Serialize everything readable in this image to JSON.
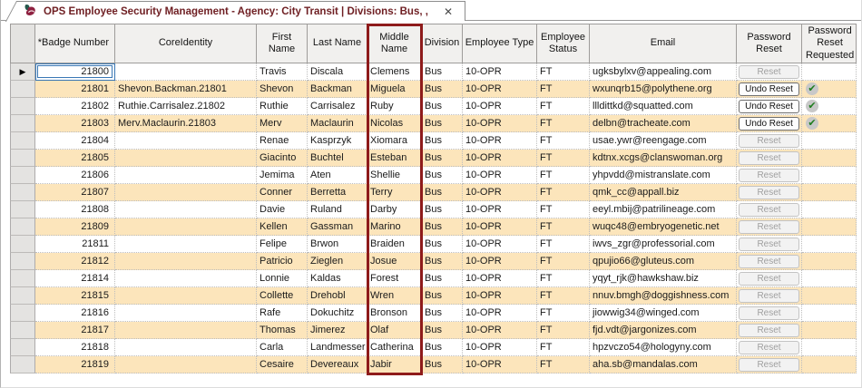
{
  "window": {
    "tab_title": "OPS Employee Security Management - Agency: City Transit | Divisions: Bus, ,",
    "close_label": "✕"
  },
  "colors": {
    "accent_red": "#8e1b1b",
    "row_alt_orange": "#fce5bb",
    "check_green": "#1e7d1e",
    "title_maroon": "#6e1e22",
    "focus_blue": "#3a78b5"
  },
  "grid": {
    "current_row_indicator": "▶",
    "columns": [
      {
        "key": "badge",
        "label": "*Badge Number"
      },
      {
        "key": "core",
        "label": "CoreIdentity"
      },
      {
        "key": "first",
        "label": "First Name"
      },
      {
        "key": "last",
        "label": "Last Name"
      },
      {
        "key": "middle",
        "label": "Middle Name"
      },
      {
        "key": "division",
        "label": "Division"
      },
      {
        "key": "type",
        "label": "Employee Type"
      },
      {
        "key": "status",
        "label": "Employee Status"
      },
      {
        "key": "email",
        "label": "Email"
      },
      {
        "key": "reset",
        "label": "Password Reset"
      },
      {
        "key": "requested",
        "label": "Password Reset Requested"
      }
    ],
    "rows": [
      {
        "badge": "21800",
        "core": "",
        "first": "Travis",
        "last": "Discala",
        "middle": "Clemens",
        "division": "Bus",
        "type": "10-OPR",
        "status": "FT",
        "email": "ugksbylxv@appealing.com",
        "reset_label": "Reset",
        "reset_enabled": false,
        "requested": false
      },
      {
        "badge": "21801",
        "core": "Shevon.Backman.21801",
        "first": "Shevon",
        "last": "Backman",
        "middle": "Miguela",
        "division": "Bus",
        "type": "10-OPR",
        "status": "FT",
        "email": "wxunqrb15@polythene.org",
        "reset_label": "Undo Reset",
        "reset_enabled": true,
        "requested": true
      },
      {
        "badge": "21802",
        "core": "Ruthie.Carrisalez.21802",
        "first": "Ruthie",
        "last": "Carrisalez",
        "middle": "Ruby",
        "division": "Bus",
        "type": "10-OPR",
        "status": "FT",
        "email": "llldittkd@squatted.com",
        "reset_label": "Undo Reset",
        "reset_enabled": true,
        "requested": true
      },
      {
        "badge": "21803",
        "core": "Merv.Maclaurin.21803",
        "first": "Merv",
        "last": "Maclaurin",
        "middle": "Nicolas",
        "division": "Bus",
        "type": "10-OPR",
        "status": "FT",
        "email": "delbn@tracheate.com",
        "reset_label": "Undo Reset",
        "reset_enabled": true,
        "requested": true
      },
      {
        "badge": "21804",
        "core": "",
        "first": "Renae",
        "last": "Kasprzyk",
        "middle": "Xiomara",
        "division": "Bus",
        "type": "10-OPR",
        "status": "FT",
        "email": "usae.ywr@reengage.com",
        "reset_label": "Reset",
        "reset_enabled": false,
        "requested": false
      },
      {
        "badge": "21805",
        "core": "",
        "first": "Giacinto",
        "last": "Buchtel",
        "middle": "Esteban",
        "division": "Bus",
        "type": "10-OPR",
        "status": "FT",
        "email": "kdtnx.xcgs@clanswoman.org",
        "reset_label": "Reset",
        "reset_enabled": false,
        "requested": false
      },
      {
        "badge": "21806",
        "core": "",
        "first": "Jemima",
        "last": "Aten",
        "middle": "Shellie",
        "division": "Bus",
        "type": "10-OPR",
        "status": "FT",
        "email": "yhpvdd@mistranslate.com",
        "reset_label": "Reset",
        "reset_enabled": false,
        "requested": false
      },
      {
        "badge": "21807",
        "core": "",
        "first": "Conner",
        "last": "Berretta",
        "middle": "Terry",
        "division": "Bus",
        "type": "10-OPR",
        "status": "FT",
        "email": "qmk_cc@appall.biz",
        "reset_label": "Reset",
        "reset_enabled": false,
        "requested": false
      },
      {
        "badge": "21808",
        "core": "",
        "first": "Davie",
        "last": "Ruland",
        "middle": "Darby",
        "division": "Bus",
        "type": "10-OPR",
        "status": "FT",
        "email": "eeyl.mbij@patrilineage.com",
        "reset_label": "Reset",
        "reset_enabled": false,
        "requested": false
      },
      {
        "badge": "21809",
        "core": "",
        "first": "Kellen",
        "last": "Gassman",
        "middle": "Marino",
        "division": "Bus",
        "type": "10-OPR",
        "status": "FT",
        "email": "wuqc48@embryogenetic.net",
        "reset_label": "Reset",
        "reset_enabled": false,
        "requested": false
      },
      {
        "badge": "21811",
        "core": "",
        "first": "Felipe",
        "last": "Brwon",
        "middle": "Braiden",
        "division": "Bus",
        "type": "10-OPR",
        "status": "FT",
        "email": "iwvs_zgr@professorial.com",
        "reset_label": "Reset",
        "reset_enabled": false,
        "requested": false
      },
      {
        "badge": "21812",
        "core": "",
        "first": "Patricio",
        "last": "Zieglen",
        "middle": "Josue",
        "division": "Bus",
        "type": "10-OPR",
        "status": "FT",
        "email": "qpujio66@gluteus.com",
        "reset_label": "Reset",
        "reset_enabled": false,
        "requested": false
      },
      {
        "badge": "21814",
        "core": "",
        "first": "Lonnie",
        "last": "Kaldas",
        "middle": "Forest",
        "division": "Bus",
        "type": "10-OPR",
        "status": "FT",
        "email": "yqyt_rjk@hawkshaw.biz",
        "reset_label": "Reset",
        "reset_enabled": false,
        "requested": false
      },
      {
        "badge": "21815",
        "core": "",
        "first": "Collette",
        "last": "Drehobl",
        "middle": "Wren",
        "division": "Bus",
        "type": "10-OPR",
        "status": "FT",
        "email": "nnuv.bmgh@doggishness.com",
        "reset_label": "Reset",
        "reset_enabled": false,
        "requested": false
      },
      {
        "badge": "21816",
        "core": "",
        "first": "Rafe",
        "last": "Dokuchitz",
        "middle": "Bronson",
        "division": "Bus",
        "type": "10-OPR",
        "status": "FT",
        "email": "jiowwig34@winged.com",
        "reset_label": "Reset",
        "reset_enabled": false,
        "requested": false
      },
      {
        "badge": "21817",
        "core": "",
        "first": "Thomas",
        "last": "Jimerez",
        "middle": "Olaf",
        "division": "Bus",
        "type": "10-OPR",
        "status": "FT",
        "email": "fjd.vdt@jargonizes.com",
        "reset_label": "Reset",
        "reset_enabled": false,
        "requested": false
      },
      {
        "badge": "21818",
        "core": "",
        "first": "Carla",
        "last": "Landmesser",
        "middle": "Catherina",
        "division": "Bus",
        "type": "10-OPR",
        "status": "FT",
        "email": "hpzvczo54@hologyny.com",
        "reset_label": "Reset",
        "reset_enabled": false,
        "requested": false
      },
      {
        "badge": "21819",
        "core": "",
        "first": "Cesaire",
        "last": "Devereaux",
        "middle": "Jabir",
        "division": "Bus",
        "type": "10-OPR",
        "status": "FT",
        "email": "aha.sb@mandalas.com",
        "reset_label": "Reset",
        "reset_enabled": false,
        "requested": false
      }
    ],
    "check_glyph": "✔"
  }
}
